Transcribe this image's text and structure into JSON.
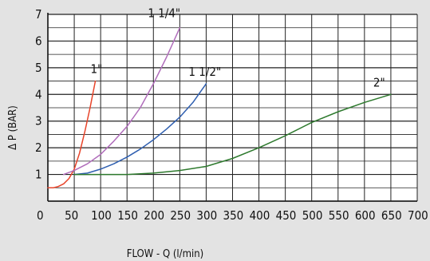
{
  "chart_data": {
    "type": "line",
    "title": "",
    "xlabel": "FLOW - Q (l/min)",
    "ylabel": "Δ P (BAR)",
    "xlim": [
      0,
      700
    ],
    "ylim": [
      0,
      7
    ],
    "grid": true,
    "x_ticks": [
      "0",
      "50",
      "100",
      "150",
      "200",
      "250",
      "300",
      "350",
      "400",
      "450",
      "500",
      "550",
      "600",
      "650",
      "700"
    ],
    "y_ticks": [
      "1",
      "2",
      "3",
      "4",
      "5",
      "6",
      "7"
    ],
    "series": [
      {
        "name": "1\"",
        "color": "#e8442a",
        "x": [
          0,
          10,
          20,
          30,
          40,
          50,
          60,
          70,
          80,
          90
        ],
        "y": [
          0.5,
          0.5,
          0.55,
          0.65,
          0.85,
          1.2,
          1.8,
          2.6,
          3.5,
          4.5
        ]
      },
      {
        "name": "1 1/4\"",
        "color": "#b06dbb",
        "x": [
          30,
          50,
          75,
          100,
          125,
          150,
          175,
          200,
          225,
          250
        ],
        "y": [
          1.0,
          1.15,
          1.4,
          1.75,
          2.25,
          2.8,
          3.5,
          4.4,
          5.4,
          6.5
        ]
      },
      {
        "name": "1 1/2\"",
        "color": "#2f5fb0",
        "x": [
          50,
          75,
          100,
          125,
          150,
          175,
          200,
          225,
          250,
          275,
          300
        ],
        "y": [
          1.0,
          1.05,
          1.2,
          1.4,
          1.65,
          1.95,
          2.3,
          2.7,
          3.15,
          3.7,
          4.4
        ]
      },
      {
        "name": "2\"",
        "color": "#2e7a2e",
        "x": [
          50,
          100,
          150,
          200,
          250,
          300,
          350,
          400,
          450,
          500,
          550,
          600,
          650
        ],
        "y": [
          1.0,
          1.0,
          1.0,
          1.05,
          1.15,
          1.3,
          1.6,
          2.0,
          2.45,
          2.95,
          3.35,
          3.7,
          4.0
        ]
      }
    ]
  }
}
